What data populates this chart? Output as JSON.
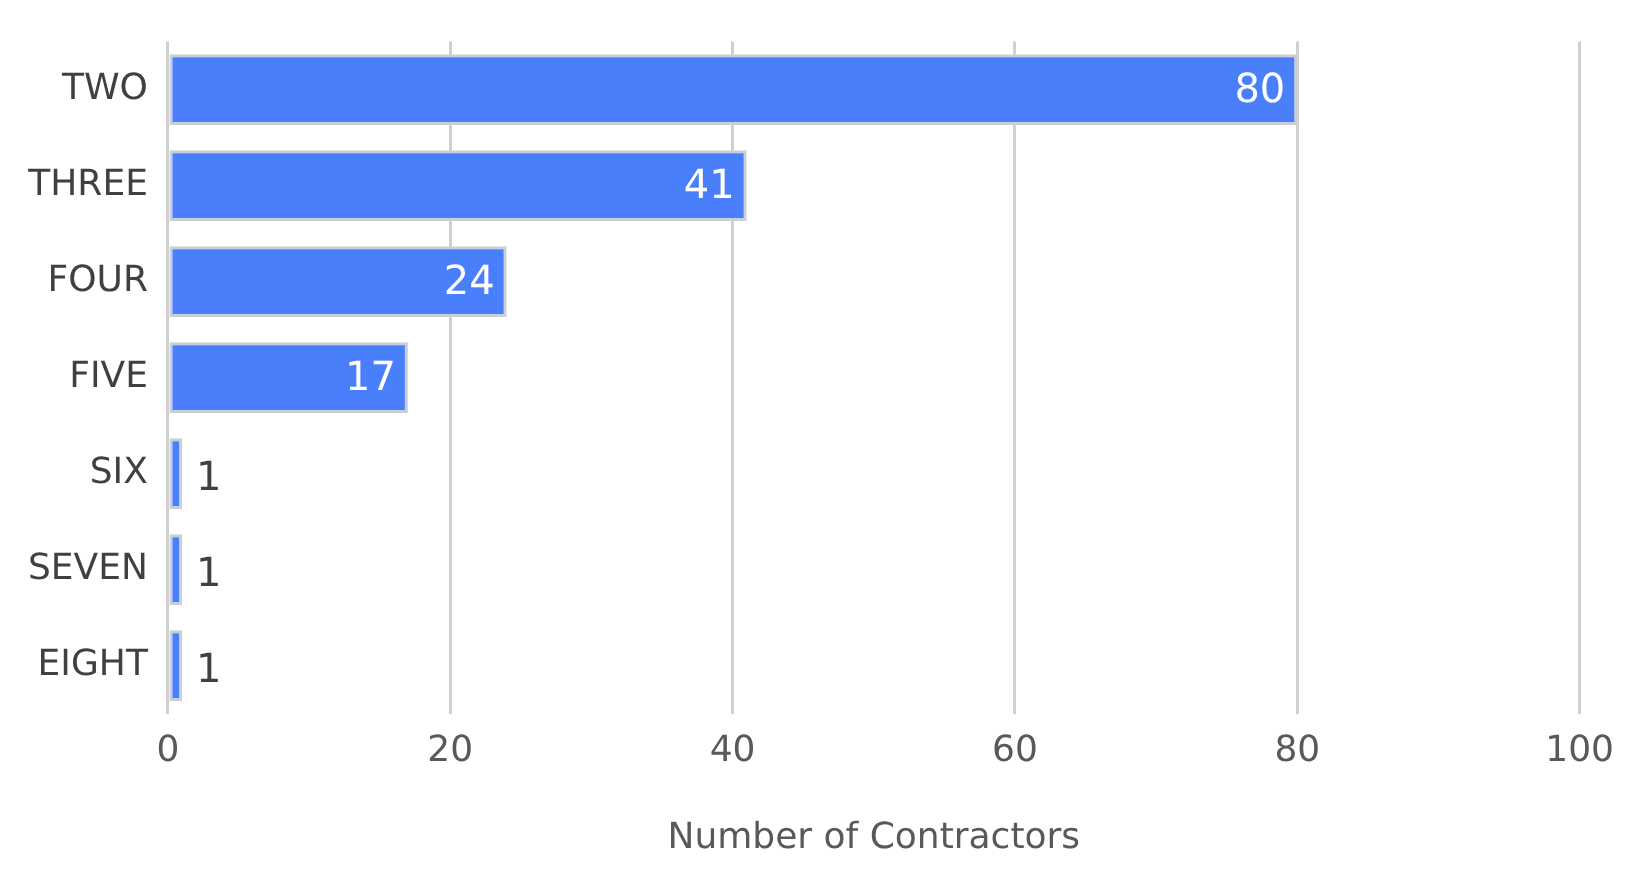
{
  "chart_data": {
    "type": "bar",
    "orientation": "horizontal",
    "categories": [
      "TWO",
      "THREE",
      "FOUR",
      "FIVE",
      "SIX",
      "SEVEN",
      "EIGHT"
    ],
    "values": [
      80,
      41,
      24,
      17,
      1,
      1,
      1
    ],
    "color": "#4a7ffc",
    "xlabel": "Number of Contractors",
    "xlim": [
      0,
      100
    ],
    "xticks": [
      0,
      20,
      40,
      60,
      80,
      100
    ],
    "grid": "x",
    "data_labels": true,
    "legend": false
  }
}
